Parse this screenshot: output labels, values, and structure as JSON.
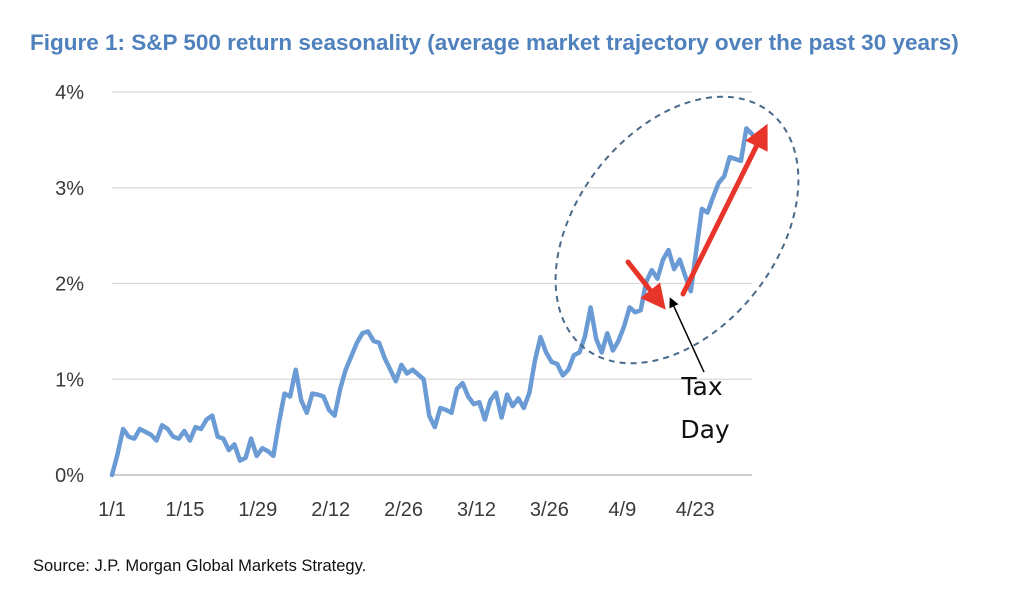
{
  "colors": {
    "title": "#4F81BD",
    "line": "#6A9BD4",
    "gridline": "#D9D9D9",
    "axis": "#BFBFBF",
    "ellipse": "#4A6A8A",
    "arrow_red": "#E8352A",
    "arrow_black": "#000000"
  },
  "chart_data": {
    "type": "line",
    "title": "Figure 1: S&P 500 return seasonality (average market trajectory over the past 30 years)",
    "source": "Source: J.P. Morgan Global Markets Strategy.",
    "xlabel": "",
    "ylabel": "",
    "x_tick_labels": [
      "1/1",
      "1/15",
      "1/29",
      "2/12",
      "2/26",
      "3/12",
      "3/26",
      "4/9",
      "4/23"
    ],
    "y_tick_labels": [
      "0%",
      "1%",
      "2%",
      "3%",
      "4%"
    ],
    "y_ticks": [
      0,
      1,
      2,
      3,
      4
    ],
    "ylim": [
      0,
      4
    ],
    "xlim": [
      0,
      115
    ],
    "grid": "horizontal",
    "legend": "none",
    "annotations": [
      {
        "text_lines": [
          "Tax",
          "Day"
        ],
        "points_to_x": 89,
        "points_to_y": 1.92
      }
    ],
    "series": [
      {
        "values": [
          0.0,
          0.22,
          0.48,
          0.4,
          0.38,
          0.48,
          0.45,
          0.42,
          0.36,
          0.52,
          0.48,
          0.4,
          0.38,
          0.46,
          0.36,
          0.5,
          0.48,
          0.58,
          0.62,
          0.4,
          0.38,
          0.26,
          0.32,
          0.15,
          0.18,
          0.38,
          0.2,
          0.28,
          0.25,
          0.2,
          0.55,
          0.85,
          0.82,
          1.1,
          0.78,
          0.65,
          0.85,
          0.84,
          0.82,
          0.68,
          0.62,
          0.9,
          1.1,
          1.24,
          1.38,
          1.48,
          1.5,
          1.4,
          1.38,
          1.22,
          1.1,
          0.98,
          1.15,
          1.06,
          1.1,
          1.05,
          1.0,
          0.62,
          0.5,
          0.7,
          0.68,
          0.65,
          0.9,
          0.96,
          0.82,
          0.74,
          0.76,
          0.58,
          0.78,
          0.86,
          0.6,
          0.84,
          0.72,
          0.8,
          0.7,
          0.86,
          1.2,
          1.44,
          1.28,
          1.18,
          1.16,
          1.04,
          1.1,
          1.25,
          1.28,
          1.45,
          1.75,
          1.42,
          1.28,
          1.48,
          1.3,
          1.4,
          1.55,
          1.75,
          1.7,
          1.72,
          2.02,
          2.14,
          2.05,
          2.25,
          2.35,
          2.15,
          2.25,
          2.08,
          1.92,
          2.35,
          2.78,
          2.74,
          2.9,
          3.05,
          3.12,
          3.32,
          3.3,
          3.28,
          3.62,
          3.56
        ]
      }
    ]
  }
}
